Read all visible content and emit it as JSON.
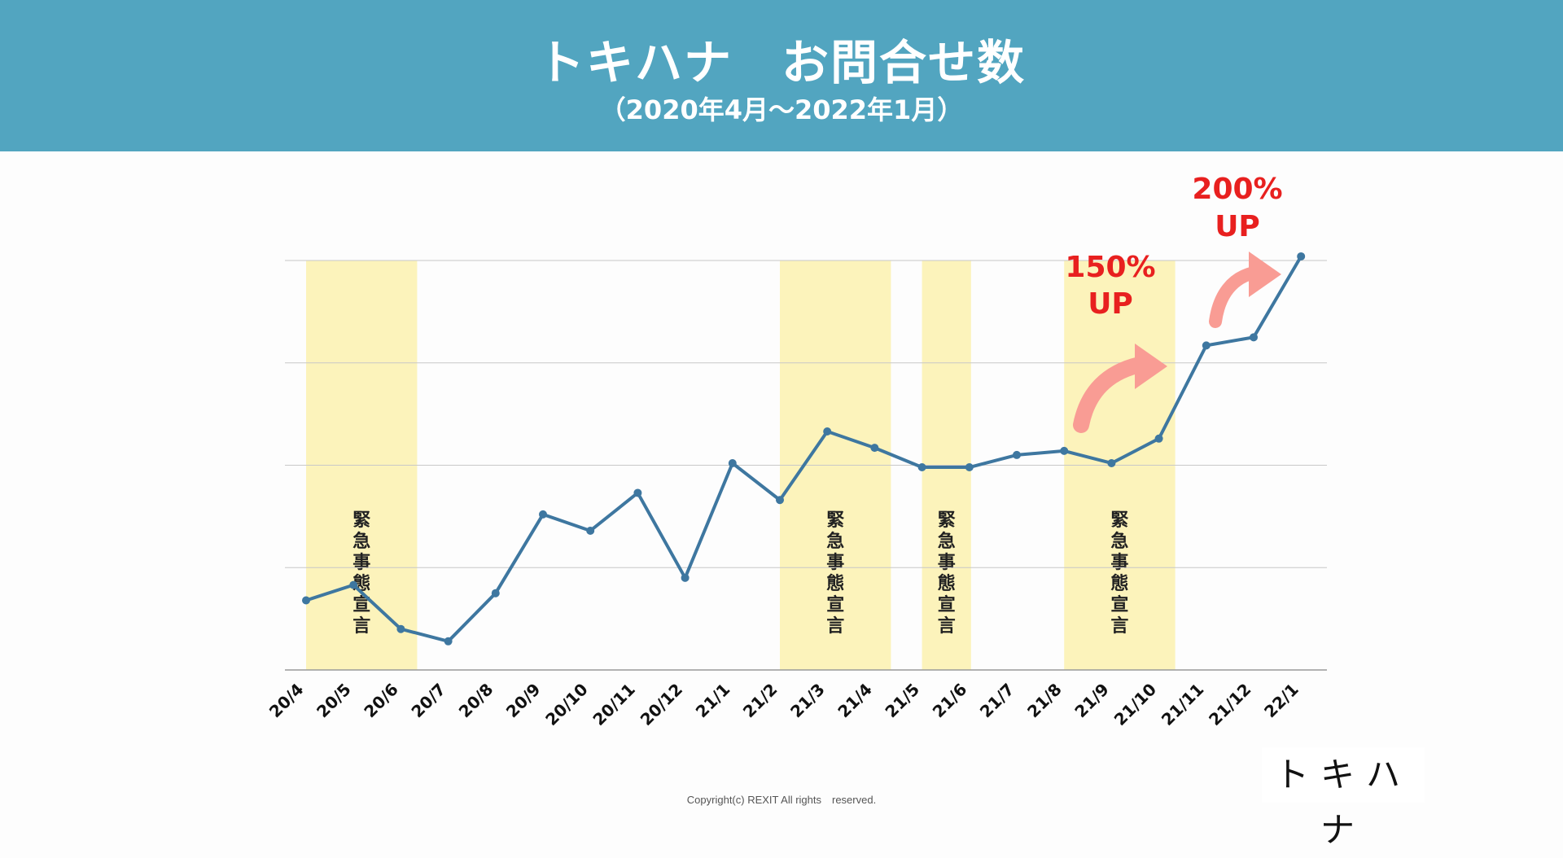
{
  "header": {
    "title": "トキハナ　お問合せ数",
    "subtitle": "（2020年4月〜2022年1月）"
  },
  "chart_data": {
    "type": "line",
    "title": "トキハナ　お問合せ数",
    "subtitle": "（2020年4月〜2022年1月）",
    "categories": [
      "20/4",
      "20/5",
      "20/6",
      "20/7",
      "20/8",
      "20/9",
      "20/10",
      "20/11",
      "20/12",
      "21/1",
      "21/2",
      "21/3",
      "21/4",
      "21/5",
      "21/6",
      "21/7",
      "21/8",
      "21/9",
      "21/10",
      "21/11",
      "21/12",
      "22/1"
    ],
    "series": [
      {
        "values": [
          0.68,
          0.83,
          0.4,
          0.28,
          0.75,
          1.52,
          1.36,
          1.73,
          0.9,
          2.02,
          1.66,
          2.33,
          2.17,
          1.98,
          1.98,
          2.1,
          2.14,
          2.02,
          2.26,
          3.17,
          3.25,
          4.04
        ]
      }
    ],
    "ylim": [
      0,
      4
    ],
    "y_ticks": [
      0,
      1,
      2,
      3,
      4
    ],
    "y_tick_labels_shown": false,
    "grid": true,
    "shaded_periods": [
      {
        "start": "20/4",
        "end": "20/6",
        "label": "緊急事態宣言"
      },
      {
        "start": "21/2",
        "end": "21/4",
        "label": "緊急事態宣言"
      },
      {
        "start": "21/5",
        "end": "21/6",
        "label": "緊急事態宣言"
      },
      {
        "start": "21/8",
        "end": "21/10",
        "label": "緊急事態宣言"
      }
    ],
    "annotations": [
      {
        "text_line1": "150%",
        "text_line2": "UP",
        "color": "#e8201f"
      },
      {
        "text_line1": "200%",
        "text_line2": "UP",
        "color": "#e8201f"
      }
    ],
    "colors": {
      "line": "#3e77a0",
      "shade": "#fcf3bb",
      "grid": "#c8c8c8",
      "axis": "#999999",
      "arrow": "#f99c94",
      "annotation": "#e8201f"
    }
  },
  "footer": {
    "copyright": "Copyright(c) REXIT All rights　reserved.",
    "logo": "トキハナ"
  }
}
